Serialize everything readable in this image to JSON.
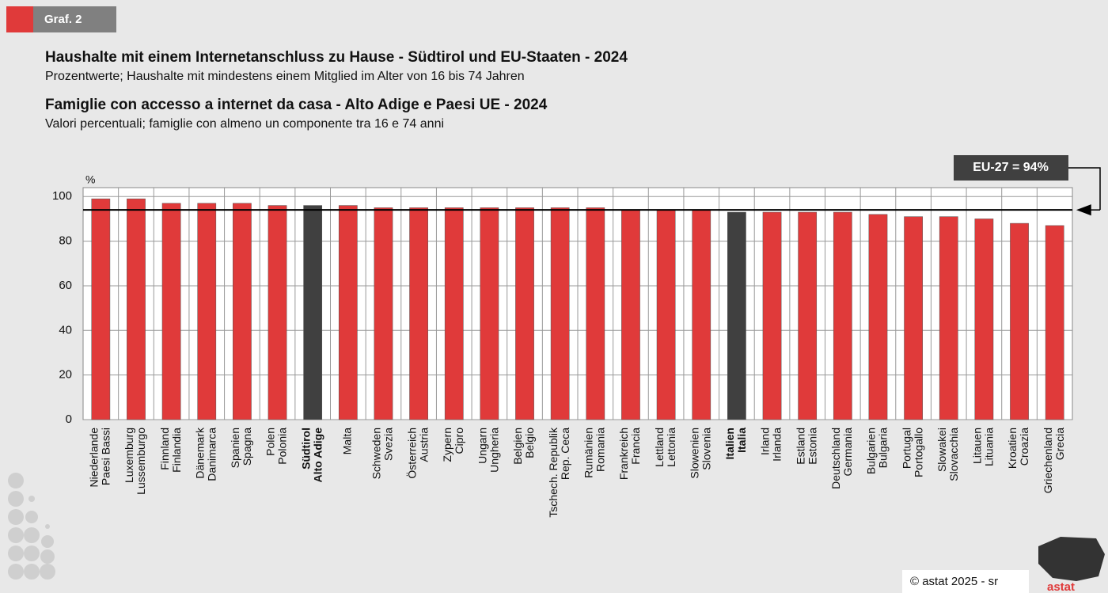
{
  "chart_data": {
    "type": "bar",
    "badge": "Graf. 2",
    "title": "Haushalte mit einem Internetanschluss zu Hause - Südtirol und EU-Staaten - 2024",
    "subtitle": "Prozentwerte; Haushalte mit mindestens einem Mitglied im Alter von 16 bis 74 Jahren",
    "title_it": "Famiglie con accesso a internet da casa - Alto Adige e Paesi UE - 2024",
    "subtitle_it": "Valori percentuali; famiglie con almeno un componente tra 16 e 74 anni",
    "y_unit": "%",
    "categories": [
      [
        "Niederlande",
        "Paesi Bassi"
      ],
      [
        "Luxemburg",
        "Lussemburgo"
      ],
      [
        "Finnland",
        "Finlandia"
      ],
      [
        "Dänemark",
        "Danimarca"
      ],
      [
        "Spanien",
        "Spagna"
      ],
      [
        "Polen",
        "Polonia"
      ],
      [
        "Südtirol",
        "Alto Adige"
      ],
      [
        "Malta"
      ],
      [
        "Schweden",
        "Svezia"
      ],
      [
        "Österreich",
        "Austria"
      ],
      [
        "Zypern",
        "Cipro"
      ],
      [
        "Ungarn",
        "Ungheria"
      ],
      [
        "Belgien",
        "Belgio"
      ],
      [
        "Tschech. Republik",
        "Rep. Ceca"
      ],
      [
        "Rumänien",
        "Romania"
      ],
      [
        "Frankreich",
        "Francia"
      ],
      [
        "Lettland",
        "Lettonia"
      ],
      [
        "Slowenien",
        "Slovenia"
      ],
      [
        "Italien",
        "Italia"
      ],
      [
        "Irland",
        "Irlanda"
      ],
      [
        "Estland",
        "Estonia"
      ],
      [
        "Deutschland",
        "Germania"
      ],
      [
        "Bulgarien",
        "Bulgaria"
      ],
      [
        "Portugal",
        "Portogallo"
      ],
      [
        "Slowakei",
        "Slovacchia"
      ],
      [
        "Litauen",
        "Lituania"
      ],
      [
        "Kroatien",
        "Croazia"
      ],
      [
        "Griechenland",
        "Grecia"
      ]
    ],
    "values": [
      99,
      99,
      97,
      97,
      97,
      96,
      96,
      96,
      95,
      95,
      95,
      95,
      95,
      95,
      95,
      94,
      94,
      94,
      93,
      93,
      93,
      93,
      92,
      91,
      91,
      90,
      88,
      87
    ],
    "color": "#e03a3a",
    "colors": [
      "#e03a3a",
      "#e03a3a",
      "#e03a3a",
      "#e03a3a",
      "#e03a3a",
      "#e03a3a",
      "#404040",
      "#e03a3a",
      "#e03a3a",
      "#e03a3a",
      "#e03a3a",
      "#e03a3a",
      "#e03a3a",
      "#e03a3a",
      "#e03a3a",
      "#e03a3a",
      "#e03a3a",
      "#e03a3a",
      "#404040",
      "#e03a3a",
      "#e03a3a",
      "#e03a3a",
      "#e03a3a",
      "#e03a3a",
      "#e03a3a",
      "#e03a3a",
      "#e03a3a",
      "#e03a3a"
    ],
    "ylim": [
      0,
      104
    ],
    "yticks": [
      0,
      20,
      40,
      60,
      80,
      100
    ],
    "grid": true,
    "reference_line": {
      "value": 94,
      "label": "EU-27 = 94%"
    },
    "footer": "© astat 2025 - sr",
    "logo": "astat"
  }
}
